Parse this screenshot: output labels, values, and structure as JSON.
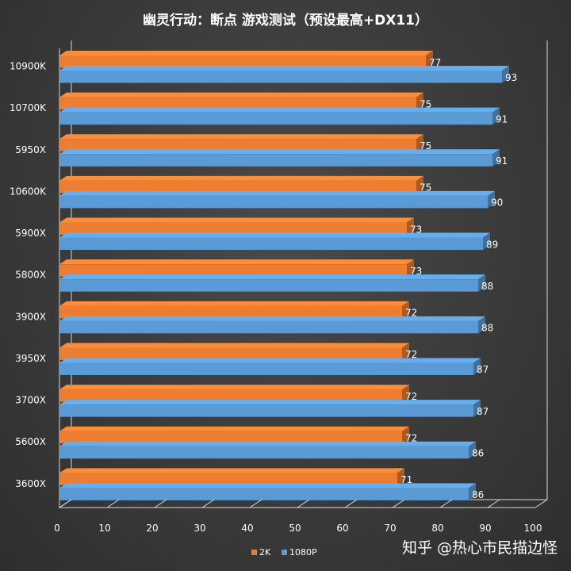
{
  "chart_data": {
    "type": "bar",
    "orientation": "horizontal",
    "title": "幽灵行动：断点 游戏测试（预设最高+DX11）",
    "categories": [
      "10900K",
      "10700K",
      "5950X",
      "10600K",
      "5900X",
      "5800X",
      "3900X",
      "3950X",
      "3700X",
      "5600X",
      "3600X"
    ],
    "series": [
      {
        "name": "2K",
        "values": [
          77,
          75,
          75,
          75,
          73,
          73,
          72,
          72,
          72,
          72,
          71
        ],
        "color": "#ED7D31"
      },
      {
        "name": "1080P",
        "values": [
          93,
          91,
          91,
          90,
          89,
          88,
          88,
          87,
          87,
          86,
          86
        ],
        "color": "#5B9BD5"
      }
    ],
    "xlim": [
      0,
      100
    ],
    "xticks": [
      0,
      10,
      20,
      30,
      40,
      50,
      60,
      70,
      80,
      90,
      100
    ],
    "legend_position": "bottom",
    "grid": false
  },
  "watermark": "知乎 @热心市民描边怪"
}
